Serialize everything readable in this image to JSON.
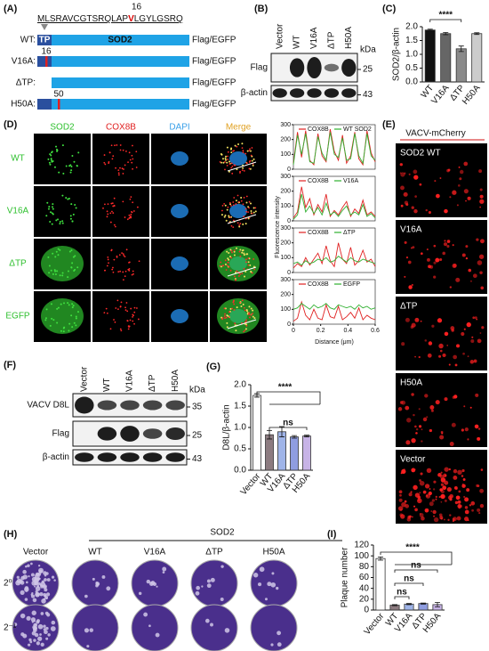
{
  "panel_a": {
    "label": "(A)",
    "position": "16",
    "seq_start": "MLSRAVCGTSRQLAP",
    "seq_mut": "V",
    "seq_end": "LGYLGSRQ",
    "tp": "TP",
    "sod2": "SOD2",
    "rows": [
      {
        "name": "WT:",
        "tag": "Flag/EGFP"
      },
      {
        "name": "V16A:",
        "mark": "16",
        "tag": "Flag/EGFP"
      },
      {
        "name": "ΔTP:",
        "tag": "Flag/EGFP"
      },
      {
        "name": "H50A:",
        "mark": "50",
        "tag": "Flag/EGFP"
      }
    ]
  },
  "panel_b": {
    "label": "(B)",
    "lanes": [
      "Vector",
      "WT",
      "V16A",
      "ΔTP",
      "H50A"
    ],
    "blots": [
      "Flag",
      "β-actin"
    ],
    "unit": "kDa",
    "markers": [
      "25",
      "43"
    ]
  },
  "panel_c": {
    "label": "(C)",
    "chart_data": {
      "type": "bar",
      "ylabel": "SOD2/β-actin",
      "categories": [
        "WT",
        "V16A",
        "ΔTP",
        "H50A"
      ],
      "values": [
        1.88,
        1.75,
        1.2,
        1.75
      ],
      "errors": [
        0.03,
        0.04,
        0.1,
        0.03
      ],
      "colors": [
        "#111111",
        "#666666",
        "#8a8a8a",
        "#cccccc"
      ],
      "ylim": [
        0,
        2
      ],
      "yticks": [
        {
          "value": 0,
          "label": "0.0"
        },
        0.5,
        {
          "value": 1,
          "label": "1.0"
        },
        1.5,
        {
          "value": 2,
          "label": "2.0"
        }
      ],
      "significance": [
        "****"
      ]
    }
  },
  "panel_d": {
    "label": "(D)",
    "channels": [
      "SOD2",
      "COX8B",
      "DAPI",
      "Merge"
    ],
    "rows": [
      "WT",
      "V16A",
      "ΔTP",
      "EGFP"
    ],
    "profiles": {
      "ylabel": "Fluorescence intensity",
      "xlabel": "Distance (μm)",
      "x": [
        0,
        0.03,
        0.06,
        0.09,
        0.12,
        0.15,
        0.18,
        0.21,
        0.24,
        0.27,
        0.3,
        0.33,
        0.36,
        0.39,
        0.42,
        0.45,
        0.48,
        0.51,
        0.54,
        0.57,
        0.6
      ],
      "xlim": [
        0,
        0.6
      ],
      "xticks": [
        0,
        0.2,
        0.4,
        0.6
      ],
      "plots": [
        {
          "type": "line",
          "ylim": [
            0,
            300
          ],
          "yticks": [
            0,
            100,
            200,
            300
          ],
          "series": [
            {
              "name": "COX8B",
              "color": "#e02020",
              "values": [
                40,
                250,
                80,
                260,
                60,
                30,
                240,
                90,
                50,
                270,
                120,
                60,
                230,
                40,
                90,
                250,
                70,
                30,
                260,
                110,
                50
              ]
            },
            {
              "name": "WT SOD2",
              "color": "#30b030",
              "values": [
                30,
                230,
                100,
                240,
                50,
                40,
                220,
                110,
                60,
                250,
                100,
                80,
                210,
                60,
                70,
                240,
                90,
                40,
                240,
                90,
                60
              ]
            }
          ]
        },
        {
          "type": "line",
          "ylim": [
            0,
            300
          ],
          "yticks": [
            0,
            100,
            200,
            300
          ],
          "series": [
            {
              "name": "COX8B",
              "color": "#e02020",
              "values": [
                20,
                60,
                230,
                90,
                150,
                40,
                110,
                60,
                180,
                30,
                70,
                40,
                90,
                130,
                30,
                80,
                50,
                140,
                40,
                60,
                30
              ]
            },
            {
              "name": "V16A",
              "color": "#30b030",
              "values": [
                10,
                40,
                180,
                60,
                100,
                50,
                90,
                40,
                120,
                40,
                60,
                30,
                70,
                100,
                40,
                60,
                40,
                110,
                30,
                50,
                20
              ]
            }
          ]
        },
        {
          "type": "line",
          "ylim": [
            0,
            300
          ],
          "yticks": [
            0,
            100,
            200,
            300
          ],
          "series": [
            {
              "name": "COX8B",
              "color": "#e02020",
              "values": [
                30,
                60,
                40,
                100,
                50,
                90,
                130,
                60,
                180,
                80,
                40,
                200,
                90,
                60,
                170,
                50,
                80,
                150,
                70,
                90,
                40
              ]
            },
            {
              "name": "ΔTP",
              "color": "#30b030",
              "values": [
                60,
                70,
                50,
                80,
                60,
                70,
                90,
                80,
                100,
                70,
                80,
                110,
                90,
                70,
                100,
                80,
                70,
                90,
                80,
                70,
                60
              ]
            }
          ]
        },
        {
          "type": "line",
          "ylim": [
            0,
            300
          ],
          "yticks": [
            0,
            100,
            200,
            300
          ],
          "series": [
            {
              "name": "COX8B",
              "color": "#e02020",
              "values": [
                20,
                40,
                150,
                60,
                30,
                100,
                40,
                30,
                130,
                50,
                40,
                120,
                30,
                50,
                80,
                40,
                110,
                30,
                60,
                40,
                30
              ]
            },
            {
              "name": "EGFP",
              "color": "#30b030",
              "values": [
                100,
                110,
                140,
                120,
                100,
                130,
                110,
                120,
                140,
                110,
                100,
                130,
                120,
                110,
                120,
                100,
                130,
                110,
                120,
                100,
                110
              ]
            }
          ]
        }
      ]
    }
  },
  "panel_e": {
    "label": "(E)",
    "title": "VACV-mCherry",
    "panels": [
      "SOD2 WT",
      "V16A",
      "ΔTP",
      "H50A",
      "Vector"
    ]
  },
  "panel_f": {
    "label": "(F)",
    "lanes": [
      "Vector",
      "WT",
      "V16A",
      "ΔTP",
      "H50A"
    ],
    "blots": [
      "VACV D8L",
      "Flag",
      "β-actin"
    ],
    "unit": "kDa",
    "markers": [
      "35",
      "25",
      "43"
    ]
  },
  "panel_g": {
    "label": "(G)",
    "chart_data": {
      "type": "bar",
      "ylabel": "D8L/β-actin",
      "categories": [
        "Vector",
        "WT",
        "V16A",
        "ΔTP",
        "H50A"
      ],
      "values": [
        1.75,
        0.83,
        0.9,
        0.78,
        0.8
      ],
      "errors": [
        0.04,
        0.1,
        0.12,
        0.03,
        0.02
      ],
      "colors": [
        "#ffffff",
        "#8c7b80",
        "#9fb4e8",
        "#8f9de0",
        "#c7b3e6"
      ],
      "ylim": [
        0,
        2
      ],
      "yticks": [
        {
          "value": 0,
          "label": "0.0"
        },
        0.5,
        {
          "value": 1,
          "label": "1.0"
        },
        1.5,
        {
          "value": 2,
          "label": "2.0"
        }
      ],
      "significance": [
        "****",
        "ns"
      ]
    }
  },
  "panel_h": {
    "label": "(H)",
    "group": "SOD2",
    "columns": [
      "Vector",
      "WT",
      "V16A",
      "ΔTP",
      "H50A"
    ],
    "dilutions": [
      "2⁰",
      "2⁻¹"
    ]
  },
  "panel_i": {
    "label": "(I)",
    "chart_data": {
      "type": "bar",
      "ylabel": "Plaque number",
      "categories": [
        "Vector",
        "WT",
        "V16A",
        "ΔTP",
        "H50A"
      ],
      "values": [
        95,
        9,
        11,
        12,
        10
      ],
      "errors": [
        3,
        1,
        1,
        1,
        4
      ],
      "colors": [
        "#ffffff",
        "#8c7b80",
        "#9fb4e8",
        "#8f9de0",
        "#c7b3e6"
      ],
      "ylim": [
        0,
        120
      ],
      "yticks": [
        0,
        20,
        40,
        60,
        80,
        100,
        120
      ],
      "significance": [
        "****",
        "ns",
        "ns",
        "ns"
      ]
    }
  }
}
